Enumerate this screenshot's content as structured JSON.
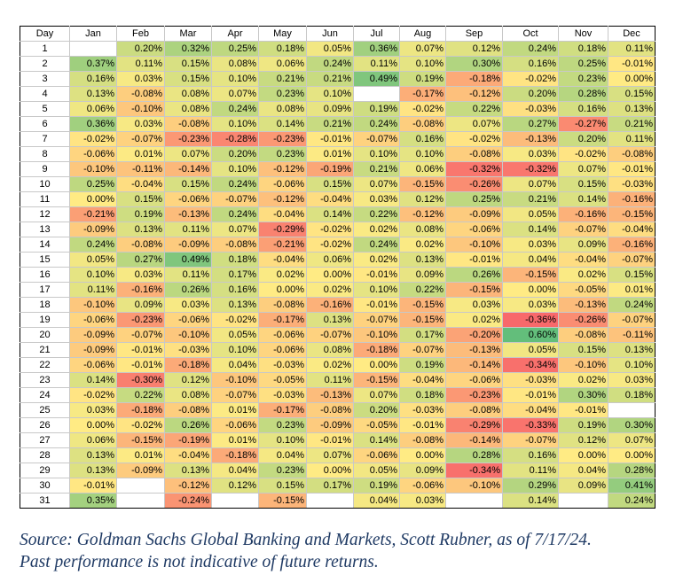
{
  "chart_data": {
    "type": "heatmap",
    "title": "",
    "row_header": "Day",
    "columns": [
      "Jan",
      "Feb",
      "Mar",
      "Apr",
      "May",
      "Jun",
      "Jul",
      "Aug",
      "Sep",
      "Oct",
      "Nov",
      "Dec"
    ],
    "rows": [
      1,
      2,
      3,
      4,
      5,
      6,
      7,
      8,
      9,
      10,
      11,
      12,
      13,
      14,
      15,
      16,
      17,
      18,
      19,
      20,
      21,
      22,
      23,
      24,
      25,
      26,
      27,
      28,
      29,
      30,
      31
    ],
    "values": [
      [
        null,
        0.2,
        0.32,
        0.25,
        0.18,
        0.05,
        0.36,
        0.07,
        0.12,
        0.24,
        0.18,
        0.11
      ],
      [
        0.37,
        0.11,
        0.15,
        0.08,
        0.06,
        0.24,
        0.11,
        0.1,
        0.3,
        0.16,
        0.25,
        -0.01
      ],
      [
        0.16,
        0.03,
        0.15,
        0.1,
        0.21,
        0.21,
        0.49,
        0.19,
        -0.18,
        -0.02,
        0.23,
        0.0
      ],
      [
        0.13,
        -0.08,
        0.08,
        0.07,
        0.23,
        0.1,
        null,
        -0.17,
        -0.12,
        0.2,
        0.28,
        0.15
      ],
      [
        0.06,
        -0.1,
        0.08,
        0.24,
        0.08,
        0.09,
        0.19,
        -0.02,
        0.22,
        -0.03,
        0.16,
        0.13
      ],
      [
        0.36,
        0.03,
        -0.08,
        0.1,
        0.14,
        0.21,
        0.24,
        -0.08,
        0.07,
        0.27,
        -0.27,
        0.21
      ],
      [
        -0.02,
        -0.07,
        -0.23,
        -0.28,
        -0.23,
        -0.01,
        -0.07,
        0.16,
        -0.02,
        -0.13,
        0.2,
        0.11
      ],
      [
        -0.06,
        0.01,
        0.07,
        0.2,
        0.23,
        0.01,
        0.1,
        0.1,
        -0.08,
        0.03,
        -0.02,
        -0.08
      ],
      [
        -0.1,
        -0.11,
        -0.14,
        0.1,
        -0.12,
        -0.19,
        0.21,
        0.06,
        -0.32,
        -0.32,
        0.07,
        -0.01
      ],
      [
        0.25,
        -0.04,
        0.15,
        0.24,
        -0.06,
        0.15,
        0.07,
        -0.15,
        -0.26,
        0.07,
        0.15,
        -0.03
      ],
      [
        0.0,
        0.15,
        -0.06,
        -0.07,
        -0.12,
        -0.04,
        0.03,
        0.12,
        0.25,
        0.21,
        0.14,
        -0.16
      ],
      [
        -0.21,
        0.19,
        -0.13,
        0.24,
        -0.04,
        0.14,
        0.22,
        -0.12,
        -0.09,
        0.05,
        -0.16,
        -0.15
      ],
      [
        -0.09,
        0.13,
        0.11,
        0.07,
        -0.29,
        -0.02,
        0.02,
        0.08,
        -0.06,
        0.14,
        -0.07,
        -0.04
      ],
      [
        0.24,
        -0.08,
        -0.09,
        -0.08,
        -0.21,
        -0.02,
        0.24,
        0.02,
        -0.1,
        0.03,
        0.09,
        -0.16
      ],
      [
        0.05,
        0.27,
        0.49,
        0.18,
        -0.04,
        0.06,
        0.02,
        0.13,
        -0.01,
        0.04,
        -0.04,
        -0.07
      ],
      [
        0.1,
        0.03,
        0.11,
        0.17,
        0.02,
        0.0,
        -0.01,
        0.09,
        0.26,
        -0.15,
        0.02,
        0.15
      ],
      [
        0.11,
        -0.16,
        0.26,
        0.16,
        0.0,
        0.02,
        0.1,
        0.22,
        -0.15,
        0.0,
        -0.05,
        0.01
      ],
      [
        -0.1,
        0.09,
        0.03,
        0.13,
        -0.08,
        -0.16,
        -0.01,
        -0.15,
        0.03,
        0.03,
        -0.13,
        0.24
      ],
      [
        -0.06,
        -0.23,
        -0.06,
        -0.02,
        -0.17,
        0.13,
        -0.07,
        -0.15,
        0.02,
        -0.36,
        -0.26,
        -0.07
      ],
      [
        -0.09,
        -0.07,
        -0.1,
        0.05,
        -0.06,
        -0.07,
        -0.1,
        0.17,
        -0.2,
        0.6,
        -0.08,
        -0.11
      ],
      [
        -0.09,
        -0.01,
        -0.03,
        0.1,
        -0.06,
        0.08,
        -0.18,
        -0.07,
        -0.13,
        0.05,
        0.15,
        0.13
      ],
      [
        -0.06,
        -0.01,
        -0.18,
        0.04,
        -0.03,
        0.02,
        0.0,
        0.19,
        -0.14,
        -0.34,
        -0.1,
        0.1
      ],
      [
        0.14,
        -0.3,
        0.12,
        -0.1,
        -0.05,
        0.11,
        -0.15,
        -0.04,
        -0.06,
        -0.03,
        0.02,
        0.03
      ],
      [
        -0.02,
        0.22,
        0.08,
        -0.07,
        -0.03,
        -0.13,
        0.07,
        0.18,
        -0.23,
        -0.01,
        0.3,
        0.18
      ],
      [
        0.03,
        -0.18,
        -0.08,
        0.01,
        -0.17,
        -0.08,
        0.2,
        -0.03,
        -0.08,
        -0.04,
        -0.01,
        null
      ],
      [
        0.0,
        -0.02,
        0.26,
        -0.06,
        0.23,
        -0.09,
        -0.05,
        -0.01,
        -0.29,
        -0.33,
        0.19,
        0.3
      ],
      [
        0.06,
        -0.15,
        -0.19,
        0.01,
        0.1,
        -0.01,
        0.14,
        -0.08,
        -0.14,
        -0.07,
        0.12,
        0.07
      ],
      [
        0.13,
        0.01,
        -0.04,
        -0.18,
        0.04,
        0.07,
        -0.06,
        0.0,
        0.28,
        0.16,
        0.0,
        0.0
      ],
      [
        0.13,
        -0.09,
        0.13,
        0.04,
        0.23,
        0.0,
        0.05,
        0.09,
        -0.34,
        0.11,
        0.04,
        0.28
      ],
      [
        -0.01,
        null,
        -0.12,
        0.12,
        0.15,
        0.17,
        0.19,
        -0.06,
        -0.1,
        0.29,
        0.09,
        0.41
      ],
      [
        0.35,
        null,
        -0.24,
        null,
        -0.15,
        null,
        0.04,
        0.03,
        null,
        0.14,
        null,
        0.24
      ]
    ],
    "value_format": "percent",
    "color_scale": {
      "low": "#f8696b",
      "mid": "#ffeb84",
      "high": "#63be7b"
    }
  },
  "source_note": {
    "line1": "Source: Goldman Sachs Global Banking and Markets, Scott Rubner,  as of 7/17/24.",
    "line2": "Past performance is not indicative of future returns."
  }
}
